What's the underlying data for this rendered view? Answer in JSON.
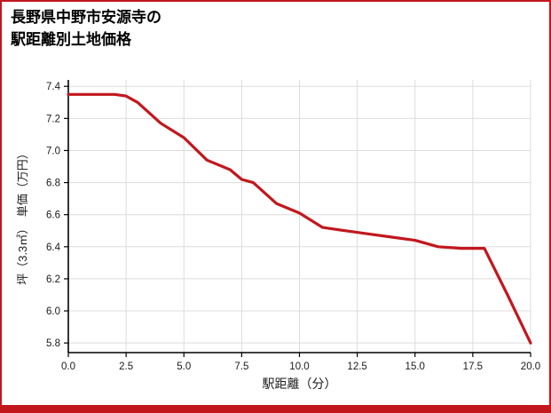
{
  "page": {
    "title_line1": "長野県中野市安源寺の",
    "title_line2": "駅距離別土地価格",
    "accent_color": "#c2171d"
  },
  "chart_data": {
    "type": "line",
    "title": "長野県中野市安源寺の駅距離別土地価格",
    "xlabel": "駅距離（分）",
    "ylabel": "坪（3.3㎡）　単価（万円）",
    "x": [
      0,
      1,
      2,
      2.5,
      3,
      4,
      5,
      6,
      7,
      7.5,
      8,
      9,
      10,
      11,
      12,
      13,
      14,
      15,
      16,
      17,
      18,
      19,
      20
    ],
    "y": [
      7.35,
      7.35,
      7.35,
      7.34,
      7.3,
      7.17,
      7.08,
      6.94,
      6.88,
      6.82,
      6.8,
      6.67,
      6.61,
      6.52,
      6.5,
      6.48,
      6.46,
      6.44,
      6.4,
      6.39,
      6.39,
      6.1,
      5.8
    ],
    "xlim": [
      0,
      20
    ],
    "ylim": [
      5.74,
      7.44
    ],
    "xticks": [
      0.0,
      2.5,
      5.0,
      7.5,
      10.0,
      12.5,
      15.0,
      17.5,
      20.0
    ],
    "yticks": [
      5.8,
      6.0,
      6.2,
      6.4,
      6.6,
      6.8,
      7.0,
      7.2,
      7.4
    ],
    "line_color": "#c2171d",
    "line_width": 3.2,
    "grid": true,
    "grid_color": "#dcdcdc",
    "axis_color": "#000000",
    "tick_label_color": "#1a1a1a",
    "legend": "none"
  }
}
